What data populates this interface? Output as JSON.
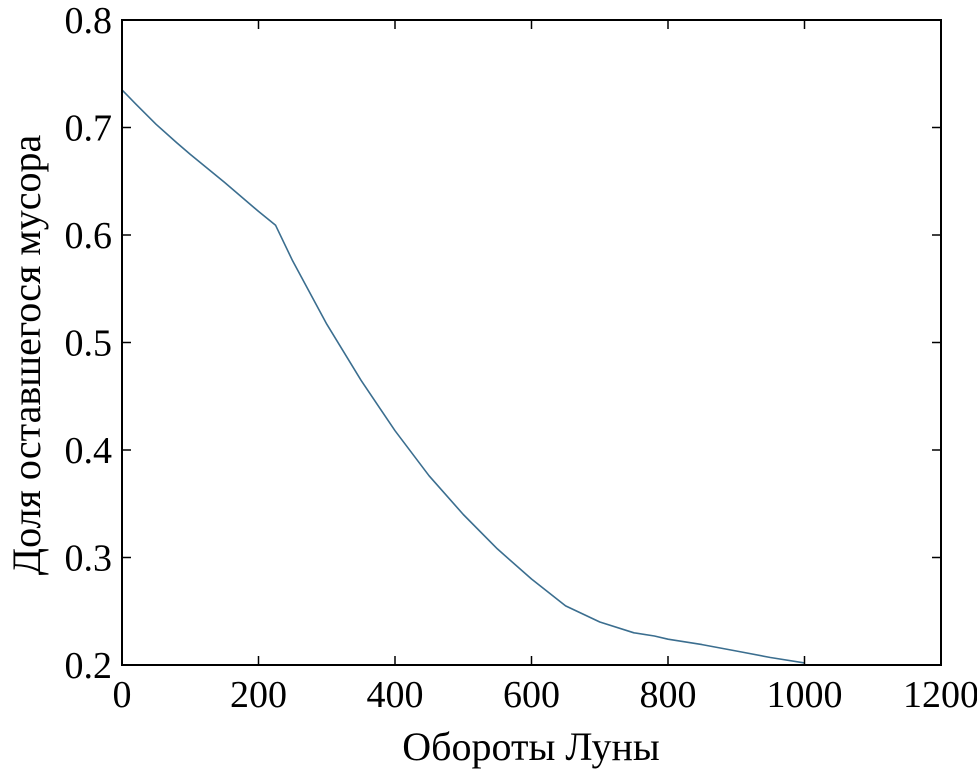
{
  "chart_data": {
    "type": "line",
    "title": "",
    "xlabel": "Обороты Луны",
    "ylabel": "Доля оставшегося мусора",
    "xlim": [
      0,
      1200
    ],
    "ylim": [
      0.2,
      0.8
    ],
    "xticks": [
      0,
      200,
      400,
      600,
      800,
      1000,
      1200
    ],
    "yticks": [
      0.2,
      0.3,
      0.4,
      0.5,
      0.6,
      0.7,
      0.8
    ],
    "xtick_labels": [
      "0",
      "200",
      "400",
      "600",
      "800",
      "1000",
      "1200"
    ],
    "ytick_labels": [
      "0.2",
      "0.3",
      "0.4",
      "0.5",
      "0.6",
      "0.7",
      "0.8"
    ],
    "grid": false,
    "legend": false,
    "series": [
      {
        "color": "#3b6e8f",
        "x": [
          0,
          20,
          50,
          80,
          100,
          150,
          200,
          225,
          250,
          300,
          350,
          400,
          450,
          500,
          550,
          600,
          650,
          700,
          750,
          780,
          800,
          850,
          900,
          950,
          1000
        ],
        "y": [
          0.735,
          0.722,
          0.703,
          0.686,
          0.675,
          0.649,
          0.622,
          0.609,
          0.576,
          0.517,
          0.465,
          0.418,
          0.376,
          0.34,
          0.308,
          0.28,
          0.255,
          0.24,
          0.23,
          0.227,
          0.224,
          0.219,
          0.213,
          0.207,
          0.202
        ]
      }
    ]
  }
}
